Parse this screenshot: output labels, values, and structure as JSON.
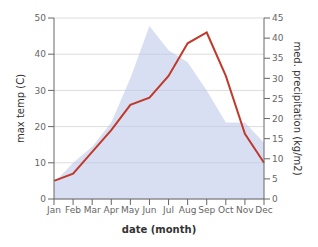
{
  "chart_data": {
    "type": "line",
    "categories": [
      "Jan",
      "Feb",
      "Mar",
      "Apr",
      "May",
      "Jun",
      "Jul",
      "Aug",
      "Sep",
      "Oct",
      "Nov",
      "Dec"
    ],
    "series": [
      {
        "type": "area",
        "color": "#b8c4e8",
        "axis": "y2",
        "values": [
          4,
          9,
          13,
          19,
          30,
          43,
          37,
          34,
          27,
          19,
          19,
          14
        ]
      },
      {
        "type": "line",
        "color": "#c0392b",
        "values": [
          5,
          7,
          13,
          19,
          26,
          28,
          34,
          43,
          46,
          34,
          18,
          10
        ]
      }
    ],
    "xlabel": "date (month)",
    "ylabel": "max temp (C)",
    "y2label": "med. precipitation (kg/m2)",
    "ylim": [
      0,
      50
    ],
    "yticks": [
      0,
      10,
      20,
      30,
      40,
      50
    ],
    "y2lim": [
      0,
      45
    ],
    "y2ticks": [
      0,
      5,
      10,
      15,
      20,
      25,
      30,
      35,
      40,
      45
    ],
    "grid": true
  }
}
